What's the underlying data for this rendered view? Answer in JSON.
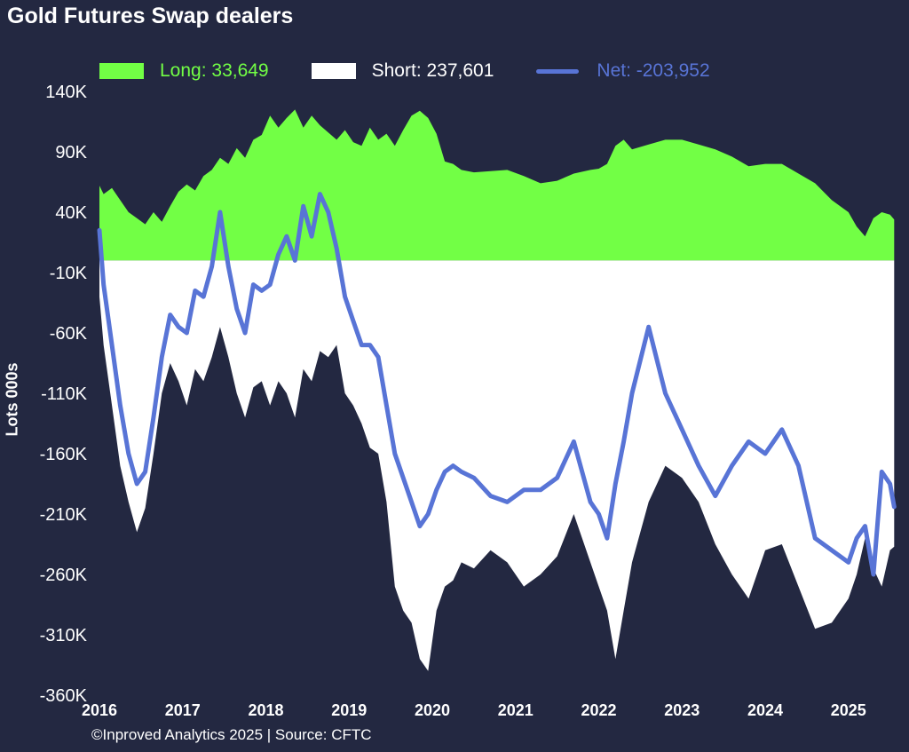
{
  "title": "Gold Futures Swap dealers",
  "footer": "©Inproved Analytics 2025 | Source: CFTC",
  "legend": {
    "long": "Long: 33,649",
    "short": "Short: 237,601",
    "net": "Net: -203,952"
  },
  "colors": {
    "background": "#232841",
    "long": "#72ff45",
    "short": "#ffffff",
    "net": "#5874d6",
    "text": "#ffffff"
  },
  "chart_data": {
    "type": "area",
    "ylabel": "Lots 000s",
    "ylim": [
      -360,
      140
    ],
    "yticks": [
      140,
      90,
      40,
      -10,
      -60,
      -110,
      -160,
      -210,
      -260,
      -310,
      -360
    ],
    "ytick_labels": [
      "140K",
      "90K",
      "40K",
      "-10K",
      "-60K",
      "-110K",
      "-160K",
      "-210K",
      "-260K",
      "-310K",
      "-360K"
    ],
    "xlim": [
      2016.0,
      2025.6
    ],
    "xtick_labels": [
      "2016",
      "2017",
      "2018",
      "2019",
      "2020",
      "2021",
      "2022",
      "2023",
      "2024",
      "2025"
    ],
    "xticks": [
      2016,
      2017,
      2018,
      2019,
      2020,
      2021,
      2022,
      2023,
      2024,
      2025
    ],
    "grid": false,
    "legend_position": "top",
    "series": [
      {
        "name": "Long",
        "style": "area",
        "x": [
          2016.0,
          2016.05,
          2016.15,
          2016.25,
          2016.35,
          2016.45,
          2016.55,
          2016.65,
          2016.75,
          2016.85,
          2016.95,
          2017.05,
          2017.15,
          2017.25,
          2017.35,
          2017.45,
          2017.55,
          2017.65,
          2017.75,
          2017.85,
          2017.95,
          2018.05,
          2018.15,
          2018.25,
          2018.35,
          2018.45,
          2018.55,
          2018.65,
          2018.75,
          2018.85,
          2018.95,
          2019.05,
          2019.15,
          2019.25,
          2019.35,
          2019.45,
          2019.55,
          2019.65,
          2019.75,
          2019.85,
          2019.95,
          2020.05,
          2020.15,
          2020.25,
          2020.35,
          2020.5,
          2020.7,
          2020.9,
          2021.1,
          2021.3,
          2021.5,
          2021.7,
          2021.9,
          2022.0,
          2022.1,
          2022.2,
          2022.3,
          2022.4,
          2022.6,
          2022.8,
          2023.0,
          2023.2,
          2023.4,
          2023.6,
          2023.8,
          2024.0,
          2024.2,
          2024.4,
          2024.6,
          2024.8,
          2025.0,
          2025.1,
          2025.2,
          2025.3,
          2025.4,
          2025.5,
          2025.55
        ],
        "y": [
          62,
          55,
          60,
          50,
          40,
          35,
          30,
          40,
          32,
          45,
          57,
          63,
          58,
          70,
          75,
          85,
          80,
          93,
          85,
          100,
          104,
          120,
          110,
          118,
          125,
          110,
          120,
          112,
          106,
          100,
          108,
          98,
          95,
          110,
          100,
          105,
          95,
          108,
          120,
          124,
          118,
          105,
          82,
          80,
          75,
          73,
          74,
          75,
          70,
          64,
          66,
          72,
          75,
          76,
          80,
          95,
          100,
          92,
          96,
          100,
          100,
          96,
          92,
          86,
          78,
          80,
          80,
          72,
          64,
          50,
          40,
          28,
          20,
          35,
          40,
          38,
          34
        ]
      },
      {
        "name": "Short",
        "style": "area",
        "x": [
          2016.0,
          2016.05,
          2016.15,
          2016.25,
          2016.35,
          2016.45,
          2016.55,
          2016.65,
          2016.75,
          2016.85,
          2016.95,
          2017.05,
          2017.15,
          2017.25,
          2017.35,
          2017.45,
          2017.55,
          2017.65,
          2017.75,
          2017.85,
          2017.95,
          2018.05,
          2018.15,
          2018.25,
          2018.35,
          2018.45,
          2018.55,
          2018.65,
          2018.75,
          2018.85,
          2018.95,
          2019.05,
          2019.15,
          2019.25,
          2019.35,
          2019.45,
          2019.55,
          2019.65,
          2019.75,
          2019.85,
          2019.95,
          2020.05,
          2020.15,
          2020.25,
          2020.35,
          2020.5,
          2020.7,
          2020.9,
          2021.1,
          2021.3,
          2021.5,
          2021.7,
          2021.9,
          2022.0,
          2022.1,
          2022.2,
          2022.3,
          2022.4,
          2022.6,
          2022.8,
          2023.0,
          2023.2,
          2023.4,
          2023.6,
          2023.8,
          2024.0,
          2024.2,
          2024.4,
          2024.6,
          2024.8,
          2025.0,
          2025.1,
          2025.2,
          2025.3,
          2025.4,
          2025.5,
          2025.55
        ],
        "y": [
          -30,
          -70,
          -120,
          -170,
          -200,
          -225,
          -205,
          -160,
          -110,
          -85,
          -100,
          -120,
          -90,
          -100,
          -80,
          -55,
          -80,
          -110,
          -130,
          -105,
          -100,
          -120,
          -100,
          -110,
          -130,
          -90,
          -100,
          -75,
          -80,
          -70,
          -110,
          -120,
          -135,
          -155,
          -160,
          -200,
          -270,
          -290,
          -300,
          -330,
          -340,
          -290,
          -270,
          -265,
          -250,
          -255,
          -240,
          -250,
          -270,
          -260,
          -245,
          -210,
          -250,
          -270,
          -290,
          -330,
          -290,
          -250,
          -200,
          -170,
          -180,
          -200,
          -235,
          -260,
          -280,
          -240,
          -235,
          -270,
          -305,
          -300,
          -280,
          -260,
          -230,
          -255,
          -270,
          -240,
          -237
        ]
      },
      {
        "name": "Net",
        "style": "line",
        "x": [
          2016.0,
          2016.05,
          2016.15,
          2016.25,
          2016.35,
          2016.45,
          2016.55,
          2016.65,
          2016.75,
          2016.85,
          2016.95,
          2017.05,
          2017.15,
          2017.25,
          2017.35,
          2017.45,
          2017.55,
          2017.65,
          2017.75,
          2017.85,
          2017.95,
          2018.05,
          2018.15,
          2018.25,
          2018.35,
          2018.45,
          2018.55,
          2018.65,
          2018.75,
          2018.85,
          2018.95,
          2019.05,
          2019.15,
          2019.25,
          2019.35,
          2019.45,
          2019.55,
          2019.65,
          2019.75,
          2019.85,
          2019.95,
          2020.05,
          2020.15,
          2020.25,
          2020.35,
          2020.5,
          2020.7,
          2020.9,
          2021.1,
          2021.3,
          2021.5,
          2021.7,
          2021.9,
          2022.0,
          2022.1,
          2022.2,
          2022.3,
          2022.4,
          2022.6,
          2022.8,
          2023.0,
          2023.2,
          2023.4,
          2023.6,
          2023.8,
          2024.0,
          2024.2,
          2024.4,
          2024.6,
          2024.8,
          2025.0,
          2025.1,
          2025.2,
          2025.3,
          2025.4,
          2025.5,
          2025.55
        ],
        "y": [
          25,
          -20,
          -70,
          -120,
          -160,
          -185,
          -175,
          -130,
          -80,
          -45,
          -55,
          -60,
          -25,
          -30,
          -5,
          40,
          -5,
          -40,
          -60,
          -20,
          -25,
          -20,
          5,
          20,
          0,
          45,
          20,
          55,
          40,
          10,
          -30,
          -50,
          -70,
          -70,
          -80,
          -120,
          -160,
          -180,
          -200,
          -220,
          -210,
          -190,
          -175,
          -170,
          -175,
          -180,
          -195,
          -200,
          -190,
          -190,
          -180,
          -150,
          -200,
          -210,
          -230,
          -185,
          -150,
          -110,
          -55,
          -110,
          -140,
          -170,
          -195,
          -170,
          -150,
          -160,
          -140,
          -170,
          -230,
          -240,
          -250,
          -230,
          -220,
          -260,
          -175,
          -185,
          -204
        ]
      }
    ]
  }
}
